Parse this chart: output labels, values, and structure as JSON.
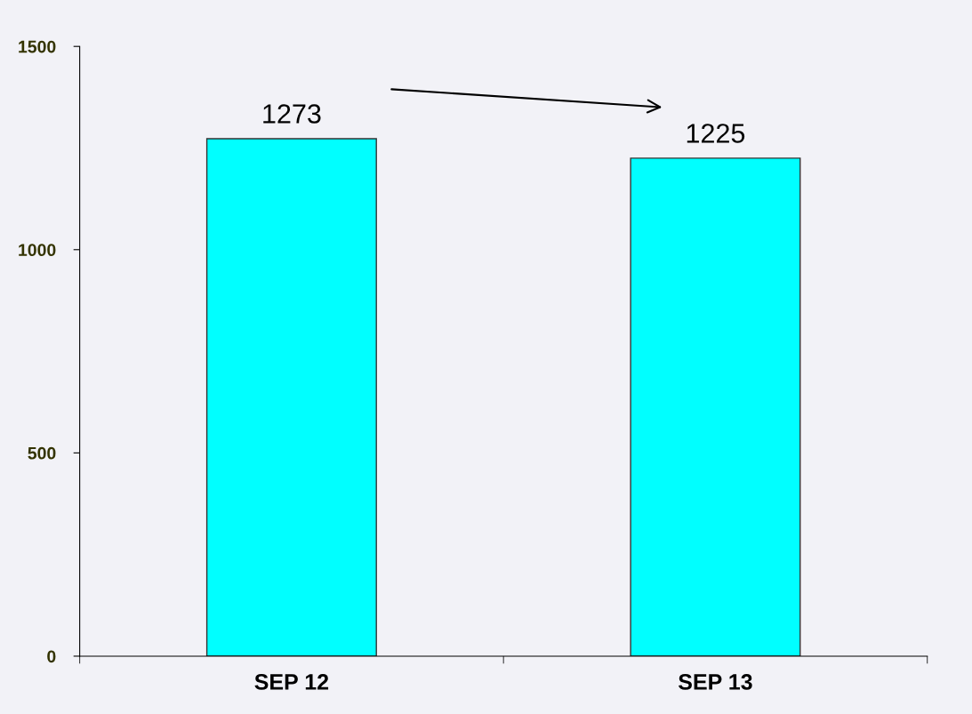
{
  "chart_data": {
    "type": "bar",
    "categories": [
      "SEP 12",
      "SEP 13"
    ],
    "values": [
      1273,
      1225
    ],
    "color": "#00ffff",
    "ylim": [
      0,
      1500
    ],
    "yticks": [
      0,
      500,
      1000,
      1500
    ],
    "data_labels": true,
    "grid": false,
    "legend": false
  }
}
